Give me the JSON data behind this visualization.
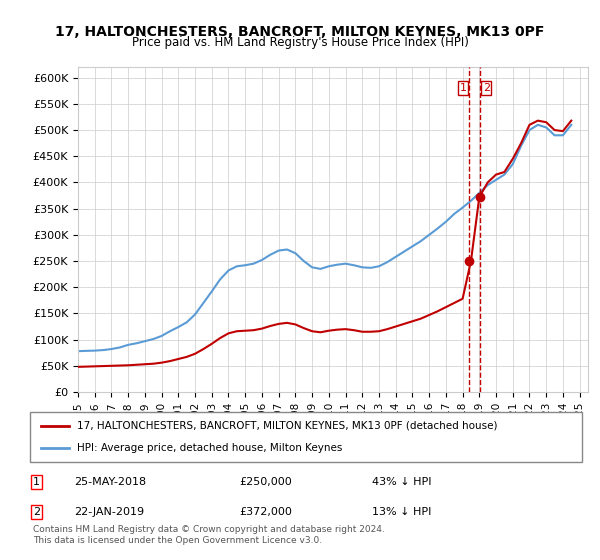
{
  "title": "17, HALTONCHESTERS, BANCROFT, MILTON KEYNES, MK13 0PF",
  "subtitle": "Price paid vs. HM Land Registry's House Price Index (HPI)",
  "legend_line1": "17, HALTONCHESTERS, BANCROFT, MILTON KEYNES, MK13 0PF (detached house)",
  "legend_line2": "HPI: Average price, detached house, Milton Keynes",
  "transaction1_label": "1",
  "transaction1_date": "25-MAY-2018",
  "transaction1_price": "£250,000",
  "transaction1_hpi": "43% ↓ HPI",
  "transaction2_label": "2",
  "transaction2_date": "22-JAN-2019",
  "transaction2_price": "£372,000",
  "transaction2_hpi": "13% ↓ HPI",
  "footer": "Contains HM Land Registry data © Crown copyright and database right 2024.\nThis data is licensed under the Open Government Licence v3.0.",
  "vline_date1": 2018.38,
  "vline_date2": 2019.05,
  "point1_x": 2018.38,
  "point1_y": 250000,
  "point2_x": 2019.05,
  "point2_y": 372000,
  "hpi_color": "#5b9bd5",
  "price_color": "#c00000",
  "vline_color": "#c00000",
  "background_color": "#ffffff",
  "ylim": [
    0,
    620000
  ],
  "xlim_start": 1995,
  "xlim_end": 2025.5,
  "yticks": [
    0,
    50000,
    100000,
    150000,
    200000,
    250000,
    300000,
    350000,
    400000,
    450000,
    500000,
    550000,
    600000
  ],
  "hpi_x": [
    1995,
    1995.5,
    1996,
    1996.5,
    1997,
    1997.5,
    1998,
    1998.5,
    1999,
    1999.5,
    2000,
    2000.5,
    2001,
    2001.5,
    2002,
    2002.5,
    2003,
    2003.5,
    2004,
    2004.5,
    2005,
    2005.5,
    2006,
    2006.5,
    2007,
    2007.5,
    2008,
    2008.5,
    2009,
    2009.5,
    2010,
    2010.5,
    2011,
    2011.5,
    2012,
    2012.5,
    2013,
    2013.5,
    2014,
    2014.5,
    2015,
    2015.5,
    2016,
    2016.5,
    2017,
    2017.5,
    2018,
    2018.5,
    2019,
    2019.5,
    2020,
    2020.5,
    2021,
    2021.5,
    2022,
    2022.5,
    2023,
    2023.5,
    2024,
    2024.5
  ],
  "hpi_y": [
    78000,
    78500,
    79000,
    80000,
    82000,
    85000,
    90000,
    93000,
    97000,
    101000,
    107000,
    116000,
    124000,
    133000,
    148000,
    170000,
    192000,
    215000,
    232000,
    240000,
    242000,
    245000,
    252000,
    262000,
    270000,
    272000,
    265000,
    250000,
    238000,
    235000,
    240000,
    243000,
    245000,
    242000,
    238000,
    237000,
    240000,
    248000,
    258000,
    268000,
    278000,
    288000,
    300000,
    312000,
    325000,
    340000,
    352000,
    365000,
    380000,
    395000,
    405000,
    415000,
    435000,
    470000,
    500000,
    510000,
    505000,
    490000,
    490000,
    510000
  ],
  "price_x": [
    1995,
    1995.5,
    1996,
    1996.5,
    1997,
    1997.5,
    1998,
    1998.5,
    1999,
    1999.5,
    2000,
    2000.5,
    2001,
    2001.5,
    2002,
    2002.5,
    2003,
    2003.5,
    2004,
    2004.5,
    2005,
    2005.5,
    2006,
    2006.5,
    2007,
    2007.5,
    2008,
    2008.5,
    2009,
    2009.5,
    2010,
    2010.5,
    2011,
    2011.5,
    2012,
    2012.5,
    2013,
    2013.5,
    2014,
    2014.5,
    2015,
    2015.5,
    2016,
    2016.5,
    2017,
    2017.5,
    2018,
    2018.5,
    2019,
    2019.5,
    2020,
    2020.5,
    2021,
    2021.5,
    2022,
    2022.5,
    2023,
    2023.5,
    2024,
    2024.5
  ],
  "price_y": [
    48000,
    48500,
    49000,
    49500,
    50000,
    50500,
    51000,
    52000,
    53000,
    54000,
    56000,
    59000,
    63000,
    67000,
    73000,
    82000,
    92000,
    103000,
    112000,
    116000,
    117000,
    118000,
    121000,
    126000,
    130000,
    132000,
    129000,
    122000,
    116000,
    114000,
    117000,
    119000,
    120000,
    118000,
    115000,
    115000,
    116000,
    120000,
    125000,
    130000,
    135000,
    140000,
    147000,
    154000,
    162000,
    170000,
    178000,
    250000,
    372000,
    400000,
    415000,
    420000,
    445000,
    475000,
    510000,
    518000,
    515000,
    500000,
    498000,
    518000
  ]
}
